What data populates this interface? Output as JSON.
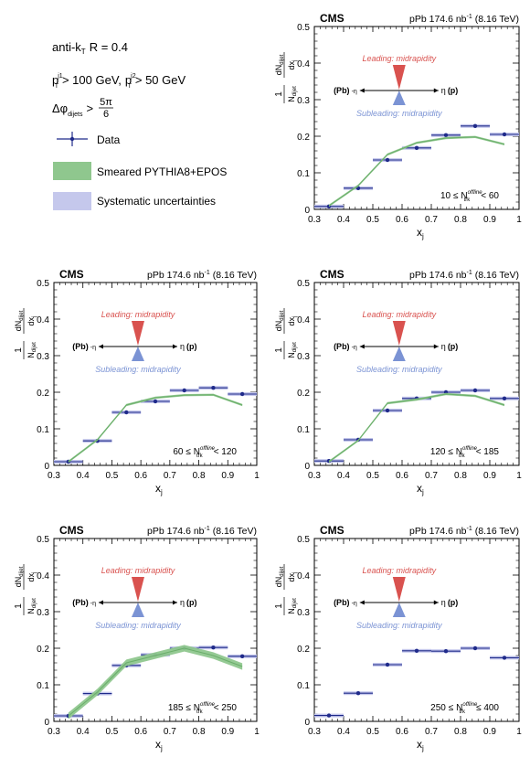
{
  "legend": {
    "algo": "anti-k",
    "algo_sub": "T",
    "radius": "R = 0.4",
    "pt1_pre": "p",
    "pt1_sup": "j1",
    "pt1_sub": "T",
    "pt1_cut": "> 100 GeV,",
    "pt2_pre": "p",
    "pt2_sup": "j2",
    "pt2_sub": "T",
    "pt2_cut": "> 50 GeV",
    "dphi_pre": "Δφ",
    "dphi_sub": "dijets",
    "dphi_cut": ">",
    "dphi_num": "5π",
    "dphi_den": "6",
    "entries": [
      {
        "label": "Data",
        "kind": "marker",
        "color": "#1f2a8a"
      },
      {
        "label": "Smeared PYTHIA8+EPOS",
        "kind": "band",
        "color": "#8fc78e"
      },
      {
        "label": "Systematic uncertainties",
        "kind": "box",
        "color": "#c5c8ec"
      }
    ]
  },
  "common": {
    "cms": "CMS",
    "lumi": "pPb 174.6 nb",
    "lumi_sup": "-1",
    "energy": "(8.16 TeV)",
    "xlabel": "x",
    "xlabel_sub": "j",
    "ylabel_frac_num": "1",
    "ylabel_frac_den": "N",
    "ylabel_den_sub": "dijet",
    "ylabel_d_num": "dN",
    "ylabel_d_num_sub": "dijet",
    "ylabel_d_den": "dx",
    "ylabel_d_den_sub": "j",
    "leading": "Leading: midrapidity",
    "subleading": "Subleading: midrapidity",
    "left_label": "(Pb)",
    "eta_minus": "-η",
    "eta_plus": "η",
    "right_label": "(p)",
    "nsym": "N",
    "nsym_sup": "offline",
    "nsym_sub": "trk"
  },
  "chart_data": [
    {
      "type": "scatter",
      "panel": "top-right",
      "range_lo": "10 ≤",
      "range_hi": "< 60",
      "xlim": [
        0.3,
        1.0
      ],
      "ylim": [
        0,
        0.5
      ],
      "xticks": [
        "0.3",
        "0.4",
        "0.5",
        "0.6",
        "0.7",
        "0.8",
        "0.9",
        "1"
      ],
      "yticks": [
        "0",
        "0.1",
        "0.2",
        "0.3",
        "0.4",
        "0.5"
      ],
      "series": [
        {
          "name": "Data",
          "x": [
            0.35,
            0.45,
            0.55,
            0.65,
            0.75,
            0.85,
            0.95
          ],
          "y": [
            0.008,
            0.058,
            0.135,
            0.168,
            0.203,
            0.228,
            0.205
          ],
          "syst": 0.004
        },
        {
          "name": "Smeared PYTHIA8+EPOS",
          "x": [
            0.35,
            0.45,
            0.55,
            0.65,
            0.75,
            0.85,
            0.95
          ],
          "y": [
            0.01,
            0.065,
            0.15,
            0.182,
            0.195,
            0.198,
            0.178
          ],
          "band": 0.003
        }
      ]
    },
    {
      "type": "scatter",
      "panel": "middle-left",
      "range_lo": "60 ≤",
      "range_hi": "< 120",
      "xlim": [
        0.3,
        1.0
      ],
      "ylim": [
        0,
        0.5
      ],
      "xticks": [
        "0.3",
        "0.4",
        "0.5",
        "0.6",
        "0.7",
        "0.8",
        "0.9",
        "1"
      ],
      "yticks": [
        "0",
        "0.1",
        "0.2",
        "0.3",
        "0.4",
        "0.5"
      ],
      "series": [
        {
          "name": "Data",
          "x": [
            0.35,
            0.45,
            0.55,
            0.65,
            0.75,
            0.85,
            0.95
          ],
          "y": [
            0.01,
            0.067,
            0.145,
            0.175,
            0.205,
            0.212,
            0.195
          ],
          "syst": 0.004
        },
        {
          "name": "Smeared PYTHIA8+EPOS",
          "x": [
            0.35,
            0.45,
            0.55,
            0.65,
            0.75,
            0.85,
            0.95
          ],
          "y": [
            0.01,
            0.07,
            0.165,
            0.185,
            0.192,
            0.193,
            0.165
          ],
          "band": 0.003
        }
      ]
    },
    {
      "type": "scatter",
      "panel": "middle-right",
      "range_lo": "120 ≤",
      "range_hi": "< 185",
      "xlim": [
        0.3,
        1.0
      ],
      "ylim": [
        0,
        0.5
      ],
      "xticks": [
        "0.3",
        "0.4",
        "0.5",
        "0.6",
        "0.7",
        "0.8",
        "0.9",
        "1"
      ],
      "yticks": [
        "0",
        "0.1",
        "0.2",
        "0.3",
        "0.4",
        "0.5"
      ],
      "series": [
        {
          "name": "Data",
          "x": [
            0.35,
            0.45,
            0.55,
            0.65,
            0.75,
            0.85,
            0.95
          ],
          "y": [
            0.012,
            0.07,
            0.15,
            0.183,
            0.2,
            0.205,
            0.183
          ],
          "syst": 0.004
        },
        {
          "name": "Smeared PYTHIA8+EPOS",
          "x": [
            0.35,
            0.45,
            0.55,
            0.65,
            0.75,
            0.85,
            0.95
          ],
          "y": [
            0.01,
            0.068,
            0.17,
            0.18,
            0.195,
            0.19,
            0.165
          ],
          "band": 0.003
        }
      ]
    },
    {
      "type": "scatter",
      "panel": "bottom-left",
      "range_lo": "185 ≤",
      "range_hi": "< 250",
      "xlim": [
        0.3,
        1.0
      ],
      "ylim": [
        0,
        0.5
      ],
      "xticks": [
        "0.3",
        "0.4",
        "0.5",
        "0.6",
        "0.7",
        "0.8",
        "0.9",
        "1"
      ],
      "yticks": [
        "0",
        "0.1",
        "0.2",
        "0.3",
        "0.4",
        "0.5"
      ],
      "series": [
        {
          "name": "Data",
          "x": [
            0.35,
            0.45,
            0.55,
            0.65,
            0.75,
            0.85,
            0.95
          ],
          "y": [
            0.015,
            0.076,
            0.153,
            0.182,
            0.2,
            0.202,
            0.178
          ],
          "syst": 0.004
        },
        {
          "name": "Smeared PYTHIA8+EPOS",
          "x": [
            0.35,
            0.45,
            0.55,
            0.65,
            0.75,
            0.85,
            0.95
          ],
          "y": [
            0.015,
            0.08,
            0.16,
            0.18,
            0.2,
            0.18,
            0.15
          ],
          "band": 0.009
        }
      ]
    },
    {
      "type": "scatter",
      "panel": "bottom-right",
      "range_lo": "250 ≤",
      "range_hi": "≤ 400",
      "xlim": [
        0.3,
        1.0
      ],
      "ylim": [
        0,
        0.5
      ],
      "xticks": [
        "0.3",
        "0.4",
        "0.5",
        "0.6",
        "0.7",
        "0.8",
        "0.9",
        "1"
      ],
      "yticks": [
        "0",
        "0.1",
        "0.2",
        "0.3",
        "0.4",
        "0.5"
      ],
      "series": [
        {
          "name": "Data",
          "x": [
            0.35,
            0.45,
            0.55,
            0.65,
            0.75,
            0.85,
            0.95
          ],
          "y": [
            0.016,
            0.077,
            0.155,
            0.193,
            0.192,
            0.2,
            0.174
          ],
          "syst": 0.004
        }
      ]
    }
  ]
}
